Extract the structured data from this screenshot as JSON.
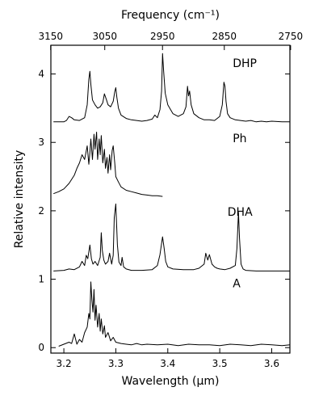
{
  "chart_data": {
    "type": "line",
    "title": "",
    "xlabel": "Wavelength (μm)",
    "x2label": "Frequency (cm⁻¹)",
    "ylabel": "Relative intensity",
    "xlim": [
      3.175,
      3.635
    ],
    "ylim": [
      -0.08,
      4.42
    ],
    "xticks": [
      {
        "value": 3.2,
        "label": "3.2"
      },
      {
        "value": 3.3,
        "label": "3.3"
      },
      {
        "value": 3.4,
        "label": "3.4"
      },
      {
        "value": 3.5,
        "label": "3.5"
      },
      {
        "value": 3.6,
        "label": "3.6"
      }
    ],
    "x2ticks": [
      {
        "value": 3150,
        "label": "3150"
      },
      {
        "value": 3050,
        "label": "3050"
      },
      {
        "value": 2950,
        "label": "2950"
      },
      {
        "value": 2850,
        "label": "2850"
      },
      {
        "value": 2750,
        "label": "2750"
      }
    ],
    "yticks": [
      {
        "value": 0,
        "label": "0"
      },
      {
        "value": 1,
        "label": "1"
      },
      {
        "value": 2,
        "label": "2"
      },
      {
        "value": 3,
        "label": "3"
      },
      {
        "value": 4,
        "label": "4"
      }
    ],
    "grid": false,
    "series": [
      {
        "name": "DHP",
        "label_pos": [
          3.525,
          4.1
        ],
        "x": [
          3.18,
          3.2,
          3.205,
          3.21,
          3.215,
          3.22,
          3.23,
          3.24,
          3.245,
          3.248,
          3.25,
          3.252,
          3.255,
          3.26,
          3.265,
          3.27,
          3.275,
          3.278,
          3.282,
          3.285,
          3.29,
          3.295,
          3.298,
          3.3,
          3.302,
          3.305,
          3.31,
          3.32,
          3.33,
          3.34,
          3.35,
          3.36,
          3.37,
          3.375,
          3.38,
          3.385,
          3.388,
          3.39,
          3.392,
          3.395,
          3.4,
          3.41,
          3.42,
          3.43,
          3.435,
          3.438,
          3.44,
          3.442,
          3.445,
          3.45,
          3.46,
          3.47,
          3.48,
          3.49,
          3.5,
          3.505,
          3.508,
          3.51,
          3.512,
          3.515,
          3.52,
          3.53,
          3.54,
          3.55,
          3.56,
          3.57,
          3.58,
          3.59,
          3.6,
          3.62,
          3.635
        ],
        "y": [
          3.3,
          3.3,
          3.32,
          3.38,
          3.36,
          3.33,
          3.32,
          3.36,
          3.55,
          3.92,
          4.04,
          3.85,
          3.62,
          3.55,
          3.5,
          3.52,
          3.58,
          3.71,
          3.62,
          3.55,
          3.52,
          3.6,
          3.74,
          3.8,
          3.66,
          3.5,
          3.4,
          3.35,
          3.33,
          3.32,
          3.31,
          3.32,
          3.34,
          3.4,
          3.36,
          3.48,
          3.75,
          4.3,
          4.05,
          3.72,
          3.55,
          3.42,
          3.38,
          3.42,
          3.52,
          3.82,
          3.68,
          3.75,
          3.55,
          3.42,
          3.36,
          3.33,
          3.33,
          3.32,
          3.38,
          3.55,
          3.88,
          3.82,
          3.6,
          3.42,
          3.36,
          3.33,
          3.32,
          3.31,
          3.32,
          3.3,
          3.31,
          3.3,
          3.31,
          3.3,
          3.3
        ]
      },
      {
        "name": "Ph",
        "label_pos": [
          3.525,
          3.0
        ],
        "x": [
          3.18,
          3.19,
          3.2,
          3.21,
          3.22,
          3.225,
          3.23,
          3.235,
          3.24,
          3.245,
          3.248,
          3.25,
          3.252,
          3.255,
          3.258,
          3.26,
          3.263,
          3.265,
          3.268,
          3.27,
          3.272,
          3.275,
          3.278,
          3.28,
          3.283,
          3.285,
          3.288,
          3.29,
          3.293,
          3.295,
          3.298,
          3.3,
          3.305,
          3.31,
          3.32,
          3.33,
          3.34,
          3.35,
          3.36,
          3.37,
          3.38,
          3.39
        ],
        "y": [
          2.25,
          2.28,
          2.32,
          2.4,
          2.52,
          2.62,
          2.7,
          2.82,
          2.75,
          2.95,
          2.68,
          2.85,
          3.05,
          2.75,
          3.12,
          2.9,
          3.15,
          2.75,
          3.05,
          2.82,
          3.1,
          2.7,
          2.9,
          2.62,
          2.78,
          2.55,
          2.82,
          2.6,
          2.88,
          2.95,
          2.7,
          2.5,
          2.42,
          2.35,
          2.3,
          2.28,
          2.26,
          2.24,
          2.23,
          2.22,
          2.22,
          2.21
        ]
      },
      {
        "name": "DHA",
        "label_pos": [
          3.515,
          1.93
        ],
        "x": [
          3.18,
          3.2,
          3.21,
          3.22,
          3.23,
          3.235,
          3.24,
          3.243,
          3.246,
          3.25,
          3.253,
          3.256,
          3.26,
          3.265,
          3.27,
          3.272,
          3.274,
          3.277,
          3.28,
          3.285,
          3.288,
          3.292,
          3.295,
          3.297,
          3.3,
          3.303,
          3.306,
          3.31,
          3.312,
          3.315,
          3.32,
          3.33,
          3.35,
          3.37,
          3.38,
          3.385,
          3.39,
          3.393,
          3.396,
          3.4,
          3.41,
          3.43,
          3.45,
          3.46,
          3.47,
          3.473,
          3.477,
          3.48,
          3.485,
          3.49,
          3.495,
          3.5,
          3.51,
          3.52,
          3.53,
          3.533,
          3.536,
          3.538,
          3.541,
          3.545,
          3.55,
          3.57,
          3.59,
          3.61,
          3.635
        ],
        "y": [
          1.12,
          1.13,
          1.15,
          1.14,
          1.18,
          1.26,
          1.2,
          1.35,
          1.3,
          1.5,
          1.3,
          1.22,
          1.26,
          1.2,
          1.32,
          1.68,
          1.42,
          1.28,
          1.22,
          1.26,
          1.38,
          1.22,
          1.35,
          1.9,
          2.1,
          1.5,
          1.25,
          1.2,
          1.32,
          1.18,
          1.15,
          1.13,
          1.13,
          1.14,
          1.2,
          1.36,
          1.62,
          1.45,
          1.26,
          1.18,
          1.15,
          1.14,
          1.14,
          1.16,
          1.22,
          1.38,
          1.28,
          1.36,
          1.22,
          1.18,
          1.16,
          1.15,
          1.14,
          1.16,
          1.2,
          1.45,
          1.98,
          1.6,
          1.22,
          1.15,
          1.13,
          1.12,
          1.12,
          1.12,
          1.12
        ]
      },
      {
        "name": "A",
        "label_pos": [
          3.525,
          0.88
        ],
        "x": [
          3.19,
          3.2,
          3.21,
          3.215,
          3.22,
          3.225,
          3.23,
          3.235,
          3.24,
          3.245,
          3.248,
          3.25,
          3.252,
          3.254,
          3.256,
          3.258,
          3.26,
          3.262,
          3.265,
          3.268,
          3.27,
          3.272,
          3.275,
          3.278,
          3.28,
          3.285,
          3.29,
          3.295,
          3.3,
          3.31,
          3.32,
          3.33,
          3.34,
          3.35,
          3.36,
          3.38,
          3.4,
          3.42,
          3.44,
          3.46,
          3.48,
          3.5,
          3.52,
          3.54,
          3.56,
          3.58,
          3.6,
          3.62,
          3.635
        ],
        "y": [
          0.02,
          0.05,
          0.08,
          0.06,
          0.2,
          0.05,
          0.12,
          0.08,
          0.22,
          0.3,
          0.5,
          0.42,
          0.96,
          0.7,
          0.52,
          0.85,
          0.4,
          0.62,
          0.3,
          0.5,
          0.24,
          0.42,
          0.2,
          0.32,
          0.15,
          0.22,
          0.1,
          0.15,
          0.08,
          0.06,
          0.05,
          0.04,
          0.06,
          0.04,
          0.05,
          0.04,
          0.05,
          0.03,
          0.05,
          0.04,
          0.04,
          0.03,
          0.05,
          0.04,
          0.03,
          0.05,
          0.04,
          0.03,
          0.04
        ]
      }
    ]
  }
}
